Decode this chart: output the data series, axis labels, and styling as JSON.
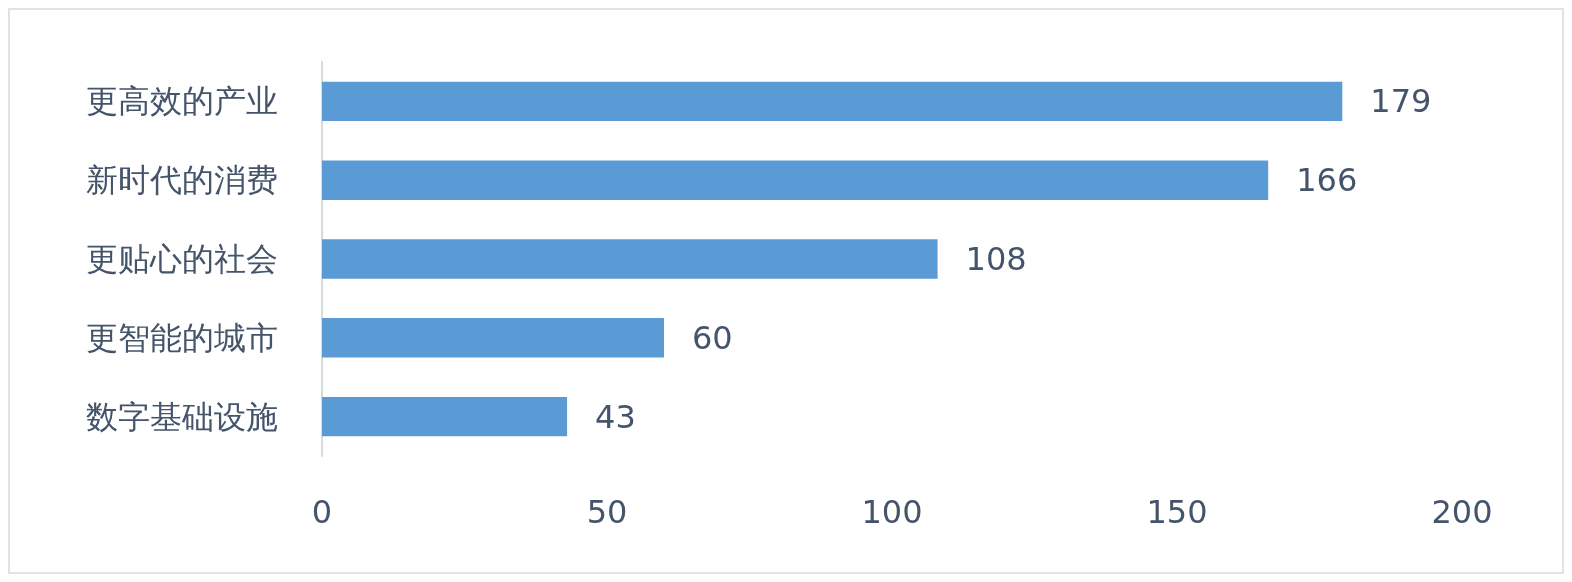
{
  "chart_data": {
    "type": "bar",
    "orientation": "horizontal",
    "categories": [
      "更高效的产业",
      "新时代的消费",
      "更贴心的社会",
      "更智能的城市",
      "数字基础设施"
    ],
    "values": [
      179,
      166,
      108,
      60,
      43
    ],
    "color": "#5b9bd5",
    "xlim": [
      0,
      200
    ],
    "xticks": [
      0,
      50,
      100,
      150,
      200
    ],
    "grid": false,
    "data_labels": true
  }
}
